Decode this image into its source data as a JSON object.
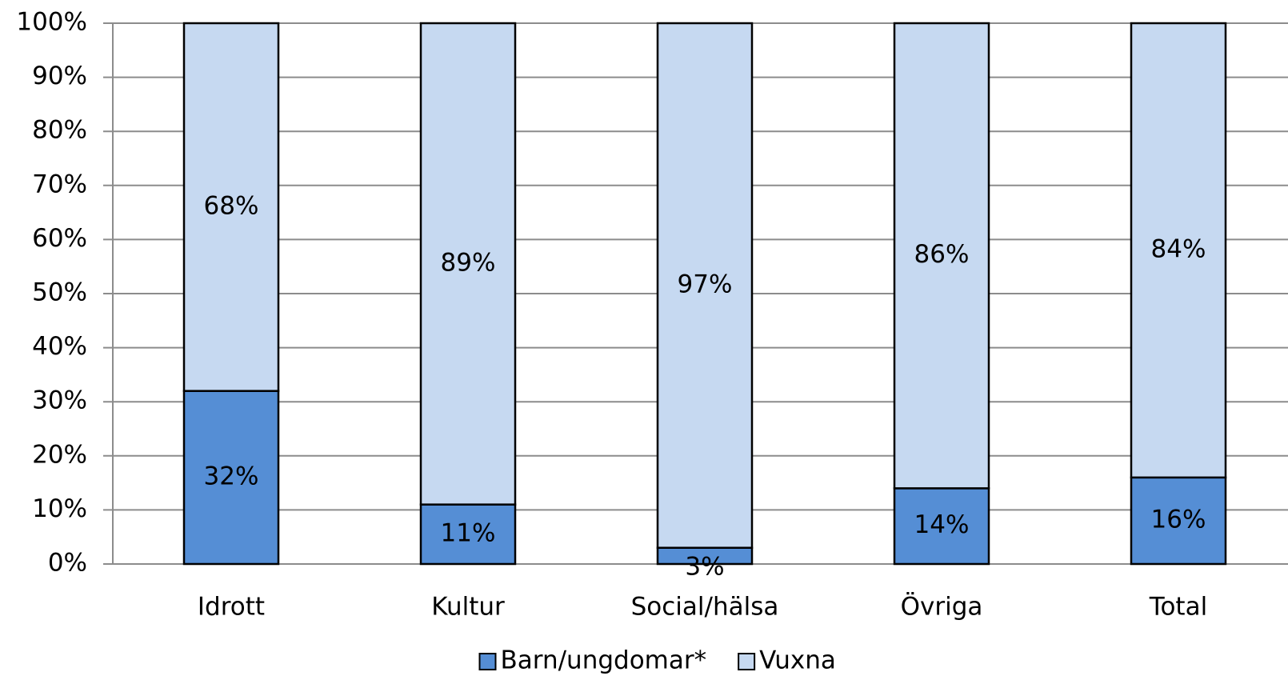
{
  "chart_data": {
    "type": "stacked_bar",
    "categories": [
      "Idrott",
      "Kultur",
      "Social/hälsa",
      "Övriga",
      "Total"
    ],
    "series": [
      {
        "name": "Barn/ungdomar*",
        "color": "#558ed5",
        "values": [
          32,
          11,
          3,
          14,
          16
        ],
        "value_labels": [
          "32%",
          "11%",
          "3%",
          "14%",
          "16%"
        ]
      },
      {
        "name": "Vuxna",
        "color": "#c6d9f1",
        "values": [
          68,
          89,
          97,
          86,
          84
        ],
        "value_labels": [
          "68%",
          "89%",
          "97%",
          "86%",
          "84%"
        ]
      }
    ],
    "ylim": [
      0,
      100
    ],
    "yticks": [
      {
        "value": 0,
        "label": "0%"
      },
      {
        "value": 10,
        "label": "10%"
      },
      {
        "value": 20,
        "label": "20%"
      },
      {
        "value": 30,
        "label": "30%"
      },
      {
        "value": 40,
        "label": "40%"
      },
      {
        "value": 50,
        "label": "50%"
      },
      {
        "value": 60,
        "label": "60%"
      },
      {
        "value": 70,
        "label": "70%"
      },
      {
        "value": 80,
        "label": "80%"
      },
      {
        "value": 90,
        "label": "90%"
      },
      {
        "value": 100,
        "label": "100%"
      }
    ],
    "grid": true,
    "legend": "bottom"
  }
}
